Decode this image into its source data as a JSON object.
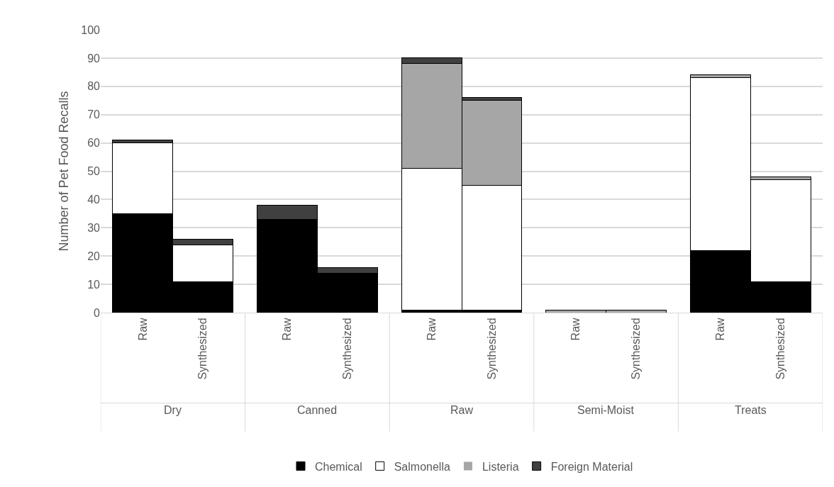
{
  "chart_data": {
    "type": "bar",
    "stacked": true,
    "ylabel": "Number of Pet Food Recalls",
    "categories": [
      "Raw",
      "Synthesized",
      "Raw",
      "Synthesized",
      "Raw",
      "Synthesized",
      "Raw",
      "Synthesized",
      "Raw",
      "Synthesized"
    ],
    "annotations": [
      "Dry",
      "Canned",
      "Raw",
      "Semi-Moist",
      "Treats"
    ],
    "series": [
      {
        "name": "Chemical",
        "color": "#000000",
        "values": [
          35,
          11,
          33,
          14,
          1,
          1,
          0,
          0,
          22,
          11
        ]
      },
      {
        "name": "Salmonella",
        "color": "#ffffff",
        "values": [
          25,
          13,
          0,
          0,
          50,
          44,
          0,
          0,
          61,
          36
        ]
      },
      {
        "name": "Listeria",
        "color": "#a6a6a6",
        "values": [
          0,
          0,
          0,
          0,
          37,
          30,
          1,
          1,
          1,
          1
        ]
      },
      {
        "name": "Foreign Material",
        "color": "#404040",
        "values": [
          1,
          2,
          5,
          2,
          2,
          1,
          0,
          0,
          0,
          0
        ]
      }
    ],
    "ylim": [
      0,
      100
    ],
    "yticks": [
      0,
      10,
      20,
      30,
      40,
      50,
      60,
      70,
      80,
      90,
      100
    ],
    "grid": "y",
    "legend": "bottom"
  }
}
